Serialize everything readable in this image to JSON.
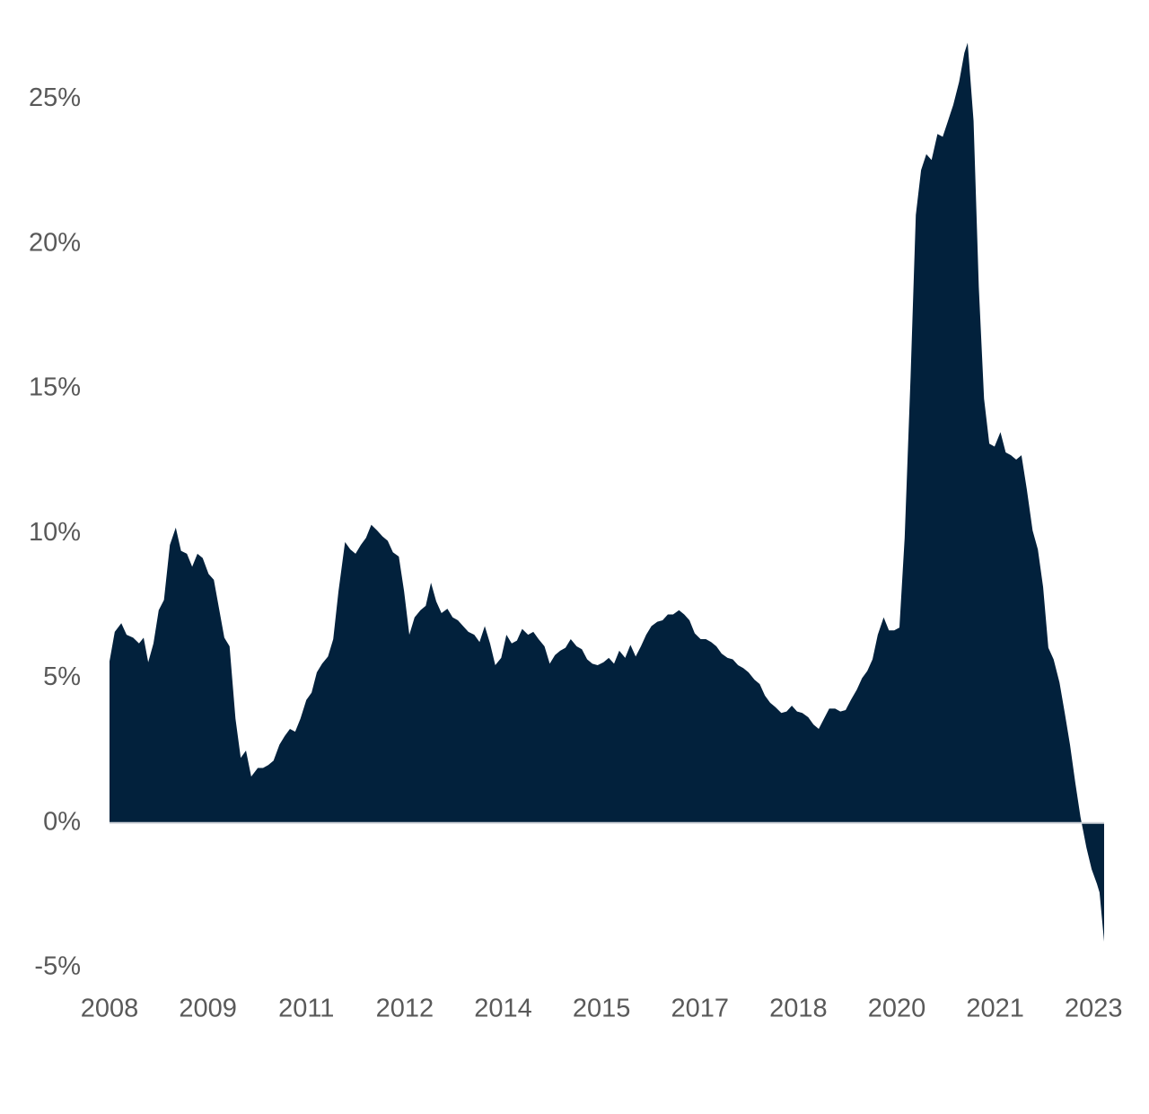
{
  "chart_data": {
    "type": "area",
    "color": "#02213c",
    "grid": false,
    "x": [
      2008.0,
      2008.08,
      2008.18,
      2008.26,
      2008.36,
      2008.45,
      2008.52,
      2008.59,
      2008.67,
      2008.75,
      2008.83,
      2008.92,
      2009.01,
      2009.09,
      2009.18,
      2009.26,
      2009.34,
      2009.42,
      2009.51,
      2009.59,
      2009.67,
      2009.75,
      2009.83,
      2009.92,
      2010.0,
      2010.08,
      2010.16,
      2010.26,
      2010.34,
      2010.42,
      2010.5,
      2010.59,
      2010.67,
      2010.75,
      2010.83,
      2010.91,
      2011.0,
      2011.08,
      2011.16,
      2011.24,
      2011.33,
      2011.41,
      2011.49,
      2011.59,
      2011.67,
      2011.75,
      2011.83,
      2011.91,
      2011.99,
      2012.08,
      2012.16,
      2012.24,
      2012.32,
      2012.41,
      2012.49,
      2012.57,
      2012.65,
      2012.74,
      2012.82,
      2012.9,
      2012.98,
      2013.06,
      2013.15,
      2013.23,
      2013.31,
      2013.39,
      2013.47,
      2013.56,
      2013.64,
      2013.72,
      2013.8,
      2013.88,
      2013.97,
      2014.05,
      2014.13,
      2014.21,
      2014.29,
      2014.38,
      2014.46,
      2014.54,
      2014.63,
      2014.71,
      2014.79,
      2014.87,
      2014.95,
      2015.03,
      2015.12,
      2015.2,
      2015.28,
      2015.36,
      2015.44,
      2015.53,
      2015.61,
      2015.69,
      2015.77,
      2015.86,
      2015.94,
      2016.02,
      2016.1,
      2016.18,
      2016.26,
      2016.35,
      2016.43,
      2016.51,
      2016.59,
      2016.68,
      2016.76,
      2016.84,
      2016.92,
      2017.01,
      2017.09,
      2017.17,
      2017.25,
      2017.33,
      2017.42,
      2017.5,
      2017.58,
      2017.66,
      2017.74,
      2017.83,
      2017.91,
      2017.99,
      2018.07,
      2018.15,
      2018.24,
      2018.32,
      2018.4,
      2018.48,
      2018.56,
      2018.65,
      2018.73,
      2018.81,
      2018.89,
      2018.97,
      2019.06,
      2019.14,
      2019.22,
      2019.3,
      2019.39,
      2019.47,
      2019.55,
      2019.63,
      2019.71,
      2019.8,
      2019.88,
      2019.96,
      2020.04,
      2020.12,
      2020.21,
      2020.29,
      2020.37,
      2020.45,
      2020.53,
      2020.62,
      2020.7,
      2020.78,
      2020.86,
      2020.95,
      2021.03,
      2021.08,
      2021.17,
      2021.25,
      2021.33,
      2021.41,
      2021.49,
      2021.58,
      2021.66,
      2021.74,
      2021.82,
      2021.9,
      2021.98,
      2022.07,
      2022.15,
      2022.23,
      2022.31,
      2022.39,
      2022.48,
      2022.56,
      2022.64,
      2022.72,
      2022.8,
      2022.89,
      2022.97,
      2023.05,
      2023.09,
      2023.16
    ],
    "values": [
      5.58,
      6.6,
      6.9,
      6.5,
      6.4,
      6.2,
      6.4,
      5.55,
      6.2,
      7.35,
      7.7,
      9.6,
      10.2,
      9.4,
      9.3,
      8.85,
      9.3,
      9.15,
      8.6,
      8.4,
      7.4,
      6.4,
      6.1,
      3.6,
      2.25,
      2.5,
      1.6,
      1.9,
      1.9,
      2.0,
      2.15,
      2.7,
      3.0,
      3.25,
      3.15,
      3.6,
      4.25,
      4.5,
      5.2,
      5.5,
      5.75,
      6.35,
      8.0,
      9.7,
      9.45,
      9.3,
      9.6,
      9.85,
      10.3,
      10.1,
      9.9,
      9.75,
      9.35,
      9.2,
      8.0,
      6.5,
      7.1,
      7.35,
      7.5,
      8.3,
      7.65,
      7.25,
      7.4,
      7.1,
      7.0,
      6.8,
      6.6,
      6.5,
      6.25,
      6.8,
      6.2,
      5.45,
      5.7,
      6.5,
      6.2,
      6.3,
      6.7,
      6.5,
      6.6,
      6.35,
      6.1,
      5.5,
      5.8,
      5.95,
      6.05,
      6.35,
      6.1,
      6.0,
      5.65,
      5.5,
      5.45,
      5.55,
      5.7,
      5.5,
      5.95,
      5.7,
      6.15,
      5.75,
      6.1,
      6.5,
      6.8,
      6.95,
      7.0,
      7.2,
      7.2,
      7.35,
      7.2,
      7.0,
      6.55,
      6.35,
      6.35,
      6.25,
      6.1,
      5.85,
      5.7,
      5.65,
      5.45,
      5.35,
      5.2,
      4.95,
      4.8,
      4.4,
      4.15,
      4.0,
      3.8,
      3.85,
      4.05,
      3.85,
      3.8,
      3.65,
      3.4,
      3.25,
      3.6,
      3.95,
      3.95,
      3.85,
      3.9,
      4.25,
      4.6,
      5.0,
      5.25,
      5.65,
      6.5,
      7.1,
      6.65,
      6.65,
      6.75,
      9.85,
      15.4,
      21.0,
      22.55,
      23.1,
      22.9,
      23.8,
      23.7,
      24.25,
      24.8,
      25.6,
      26.6,
      26.95,
      24.25,
      18.5,
      14.65,
      13.1,
      13.0,
      13.5,
      12.8,
      12.7,
      12.55,
      12.7,
      11.55,
      10.1,
      9.45,
      8.15,
      6.05,
      5.65,
      4.85,
      3.8,
      2.7,
      1.4,
      0.2,
      -0.85,
      -1.6,
      -2.1,
      -2.4,
      -4.1
    ],
    "xlim": [
      2008,
      2023.16
    ],
    "xticks": [
      {
        "value": 2008,
        "label": "2008"
      },
      {
        "value": 2009.5,
        "label": "2009"
      },
      {
        "value": 2011,
        "label": "2011"
      },
      {
        "value": 2012.5,
        "label": "2012"
      },
      {
        "value": 2014,
        "label": "2014"
      },
      {
        "value": 2015.5,
        "label": "2015"
      },
      {
        "value": 2017,
        "label": "2017"
      },
      {
        "value": 2018.5,
        "label": "2018"
      },
      {
        "value": 2020,
        "label": "2020"
      },
      {
        "value": 2021.5,
        "label": "2021"
      },
      {
        "value": 2023,
        "label": "2023"
      }
    ],
    "ylim": [
      -5,
      27
    ],
    "yticks": [
      {
        "value": -5,
        "label": "-5%"
      },
      {
        "value": 0,
        "label": "0%"
      },
      {
        "value": 5,
        "label": "5%"
      },
      {
        "value": 10,
        "label": "10%"
      },
      {
        "value": 15,
        "label": "15%"
      },
      {
        "value": 20,
        "label": "20%"
      },
      {
        "value": 25,
        "label": "25%"
      }
    ]
  }
}
